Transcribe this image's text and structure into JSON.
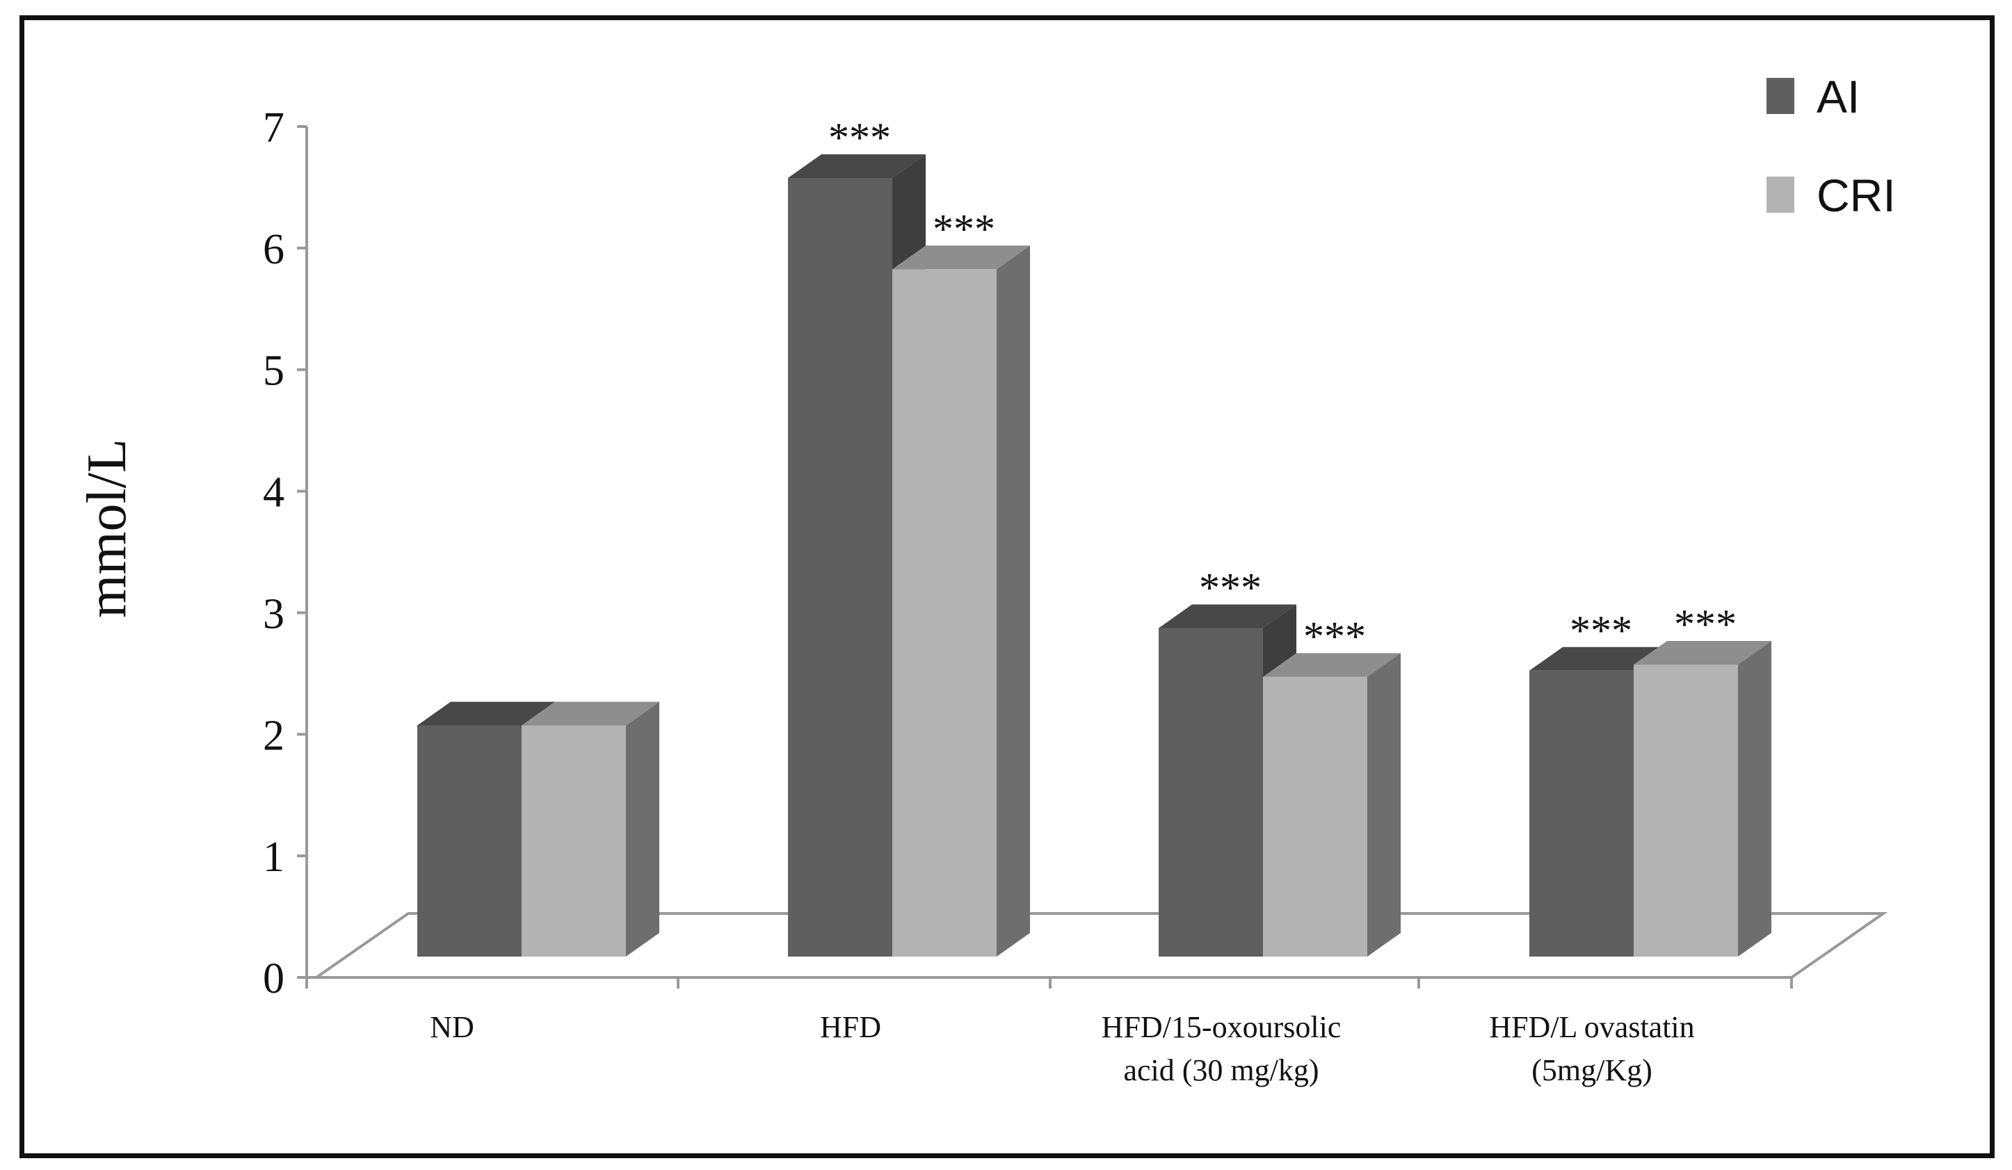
{
  "chart_data": {
    "type": "bar",
    "categories": [
      "ND",
      "HFD",
      "HFD/15-oxoursolic acid (30 mg/kg)",
      "HFD/L ovastatin (5mg/Kg)"
    ],
    "category_lines": [
      [
        "ND"
      ],
      [
        "HFD"
      ],
      [
        "HFD/15-oxoursolic",
        "acid (30 mg/kg)"
      ],
      [
        "HFD/L ovastatin",
        "(5mg/Kg)"
      ]
    ],
    "series": [
      {
        "name": "AI",
        "values": [
          1.9,
          6.4,
          2.7,
          2.35
        ],
        "annotations": [
          "",
          "***",
          "***",
          "***"
        ]
      },
      {
        "name": "CRI",
        "values": [
          1.9,
          5.65,
          2.3,
          2.4
        ],
        "annotations": [
          "",
          "***",
          "***",
          "***"
        ]
      }
    ],
    "ylabel": "mmol/L",
    "ylim": [
      0,
      7
    ],
    "yticks": [
      0,
      1,
      2,
      3,
      4,
      5,
      6,
      7
    ],
    "grid": false,
    "legend_position": "top-right",
    "style": "3d",
    "colors": {
      "AI": "#5f5f5f",
      "AI_top": "#484848",
      "AI_side": "#3e3e3e",
      "CRI": "#b3b3b3",
      "CRI_top": "#8e8e8e",
      "CRI_side": "#6e6e6e"
    }
  }
}
